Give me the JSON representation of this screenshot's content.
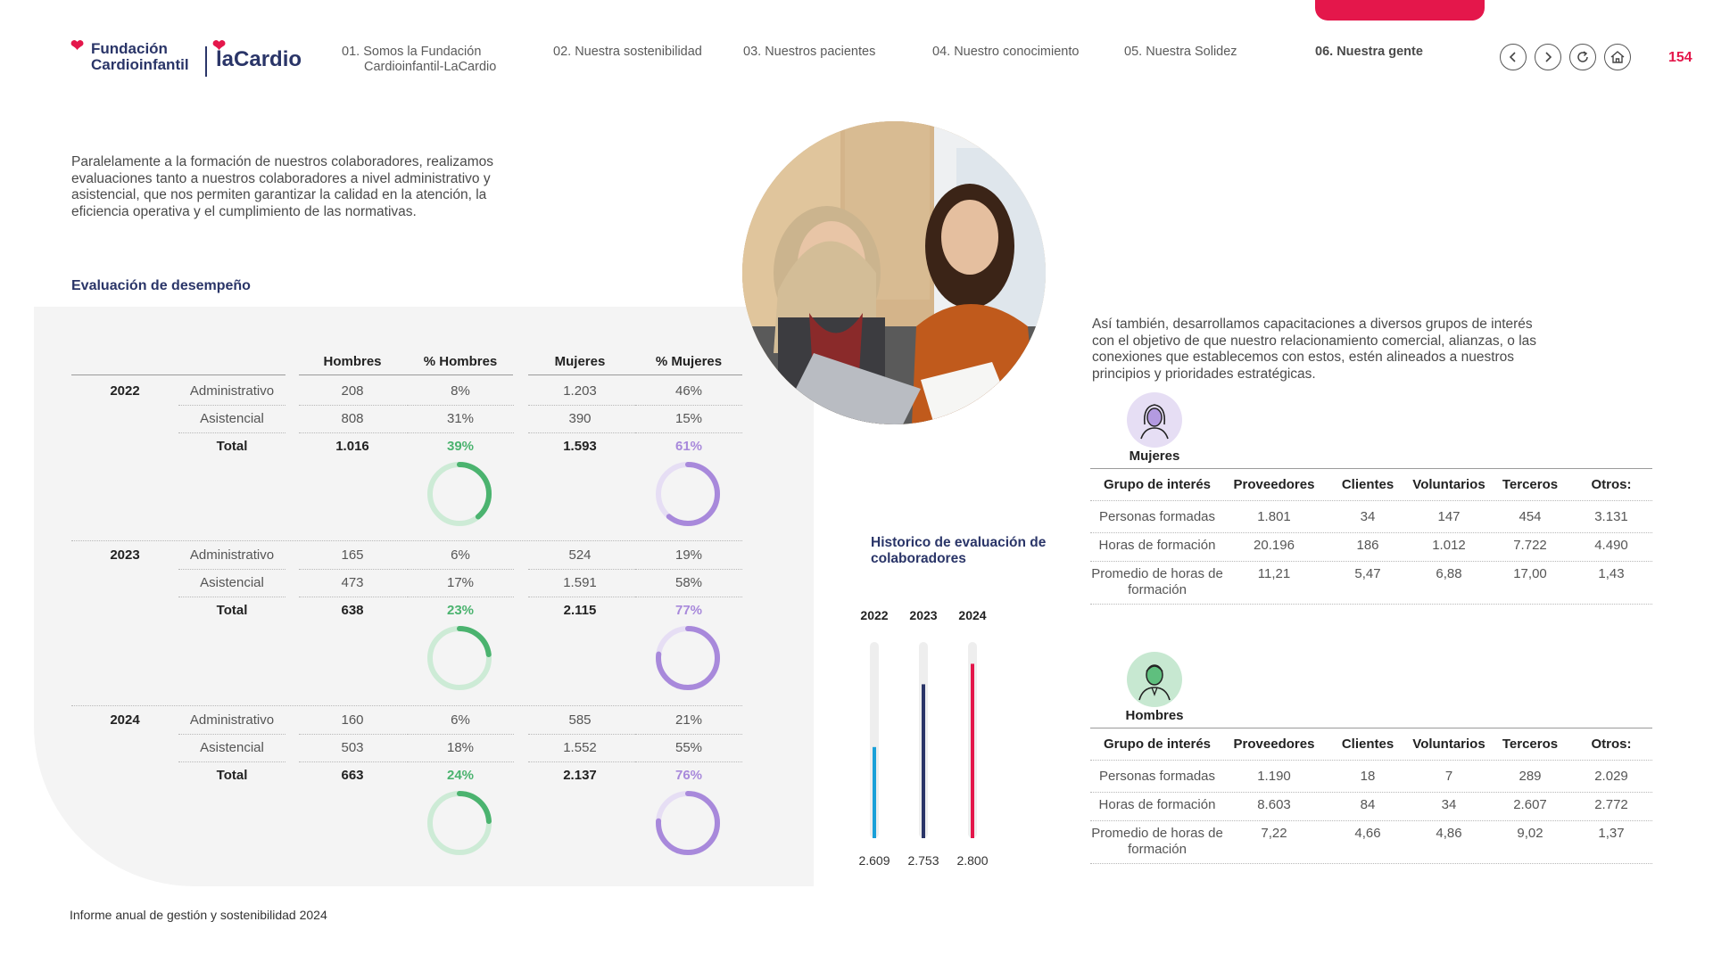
{
  "header": {
    "logo_left_line1": "Fundación",
    "logo_left_line2": "Cardioinfantil",
    "logo_right": "laCardio",
    "nav": [
      {
        "num": "01.",
        "label": "Somos la Fundación",
        "label2": "Cardioinfantil-LaCardio"
      },
      {
        "num": "02.",
        "label": "Nuestra sostenibilidad"
      },
      {
        "num": "03.",
        "label": "Nuestros pacientes"
      },
      {
        "num": "04.",
        "label": "Nuestro conocimiento"
      },
      {
        "num": "05.",
        "label": "Nuestra Solidez"
      },
      {
        "num": "06.",
        "label": "Nuestra gente"
      }
    ],
    "page_number": "154",
    "icons": [
      "chevron-left-icon",
      "chevron-right-icon",
      "refresh-icon",
      "home-icon"
    ],
    "accent": "#e4174b",
    "brand": "#2a3568"
  },
  "intro_text": "Paralelamente a la formación de nuestros colaboradores, realizamos evaluaciones tanto a nuestros colaboradores a nivel administrativo y asistencial, que nos permiten garantizar la calidad en la atención, la eficiencia operativa y el cumplimiento de las normativas.",
  "evaluation": {
    "title": "Evaluación de desempeño",
    "headers": [
      "Hombres",
      "% Hombres",
      "Mujeres",
      "% Mujeres"
    ],
    "years": [
      {
        "year": "2022",
        "rows": [
          {
            "label": "Administrativo",
            "h": "208",
            "ph": "8%",
            "m": "1.203",
            "pm": "46%"
          },
          {
            "label": "Asistencial",
            "h": "808",
            "ph": "31%",
            "m": "390",
            "pm": "15%"
          },
          {
            "label": "Total",
            "h": "1.016",
            "ph": "39%",
            "m": "1.593",
            "pm": "61%"
          }
        ],
        "ring_men": 0.39,
        "ring_women": 0.61
      },
      {
        "year": "2023",
        "rows": [
          {
            "label": "Administrativo",
            "h": "165",
            "ph": "6%",
            "m": "524",
            "pm": "19%"
          },
          {
            "label": "Asistencial",
            "h": "473",
            "ph": "17%",
            "m": "1.591",
            "pm": "58%"
          },
          {
            "label": "Total",
            "h": "638",
            "ph": "23%",
            "m": "2.115",
            "pm": "77%"
          }
        ],
        "ring_men": 0.23,
        "ring_women": 0.77
      },
      {
        "year": "2024",
        "rows": [
          {
            "label": "Administrativo",
            "h": "160",
            "ph": "6%",
            "m": "585",
            "pm": "21%"
          },
          {
            "label": "Asistencial",
            "h": "503",
            "ph": "18%",
            "m": "1.552",
            "pm": "55%"
          },
          {
            "label": "Total",
            "h": "663",
            "ph": "24%",
            "m": "2.137",
            "pm": "76%"
          }
        ],
        "ring_men": 0.24,
        "ring_women": 0.76
      }
    ],
    "men_color": "#4bb36f",
    "women_color": "#a889db"
  },
  "chart_data": {
    "type": "bar",
    "title": "Historico de evaluación de colaboradores",
    "categories": [
      "2022",
      "2023",
      "2024"
    ],
    "values": [
      2609,
      2753,
      2800
    ],
    "value_labels": [
      "2.609",
      "2.753",
      "2.800"
    ],
    "colors": [
      "#1aa0d8",
      "#2a3568",
      "#e4174b"
    ]
  },
  "training_text": "Así también, desarrollamos capacitaciones a diversos grupos de interés con el objetivo de que nuestro relacionamiento comercial, alianzas, o las conexiones que establecemos con estos, estén alineados a nuestros principios y prioridades estratégicas.",
  "training": {
    "headers": [
      "Grupo de interés",
      "Proveedores",
      "Clientes",
      "Voluntarios",
      "Terceros",
      "Otros:"
    ],
    "women": {
      "label": "Mujeres",
      "rows": [
        {
          "label": "Personas formadas",
          "values": [
            "1.801",
            "34",
            "147",
            "454",
            "3.131"
          ]
        },
        {
          "label": "Horas de formación",
          "values": [
            "20.196",
            "186",
            "1.012",
            "7.722",
            "4.490"
          ]
        },
        {
          "label": "Promedio de horas de formación",
          "values": [
            "11,21",
            "5,47",
            "6,88",
            "17,00",
            "1,43"
          ]
        }
      ]
    },
    "men": {
      "label": "Hombres",
      "rows": [
        {
          "label": "Personas formadas",
          "values": [
            "1.190",
            "18",
            "7",
            "289",
            "2.029"
          ]
        },
        {
          "label": "Horas de formación",
          "values": [
            "8.603",
            "84",
            "34",
            "2.607",
            "2.772"
          ]
        },
        {
          "label": "Promedio de horas de formación",
          "values": [
            "7,22",
            "4,66",
            "4,86",
            "9,02",
            "1,37"
          ]
        }
      ]
    }
  },
  "footer": "Informe anual de gestión y sostenibilidad 2024"
}
